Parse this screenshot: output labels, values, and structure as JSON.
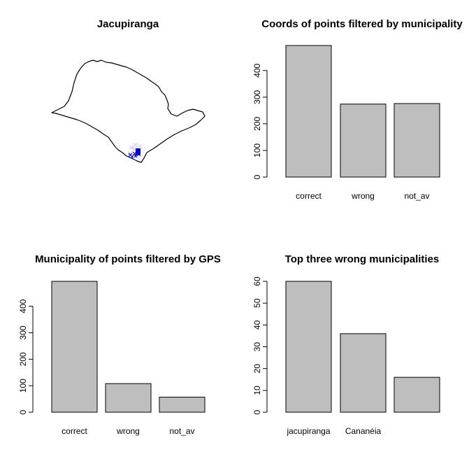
{
  "map": {
    "title": "Jacupiranga",
    "outline_icon": "sao-paulo-state-outline",
    "point_color": "#0000cd"
  },
  "bar_fill": "#bebebe",
  "chart_data": [
    {
      "type": "bar",
      "title": "Coords of points filtered by municipality",
      "categories": [
        "correct",
        "wrong",
        "not_av"
      ],
      "values": [
        494,
        274,
        276
      ],
      "ylim": [
        0,
        494
      ],
      "yticks": [
        0,
        100,
        200,
        300,
        400
      ],
      "xlabel": "",
      "ylabel": ""
    },
    {
      "type": "bar",
      "title": "Municipality of points filtered by GPS",
      "categories": [
        "correct",
        "wrong",
        "not_av"
      ],
      "values": [
        494,
        108,
        57
      ],
      "ylim": [
        0,
        494
      ],
      "yticks": [
        0,
        100,
        200,
        300,
        400
      ],
      "xlabel": "",
      "ylabel": ""
    },
    {
      "type": "bar",
      "title": "Top three wrong municipalities",
      "categories": [
        "jacupiranga",
        "Cananéia",
        ""
      ],
      "values": [
        60,
        36,
        16
      ],
      "ylim": [
        0,
        60
      ],
      "yticks": [
        0,
        10,
        20,
        30,
        40,
        50,
        60
      ],
      "xlabel": "",
      "ylabel": ""
    }
  ]
}
